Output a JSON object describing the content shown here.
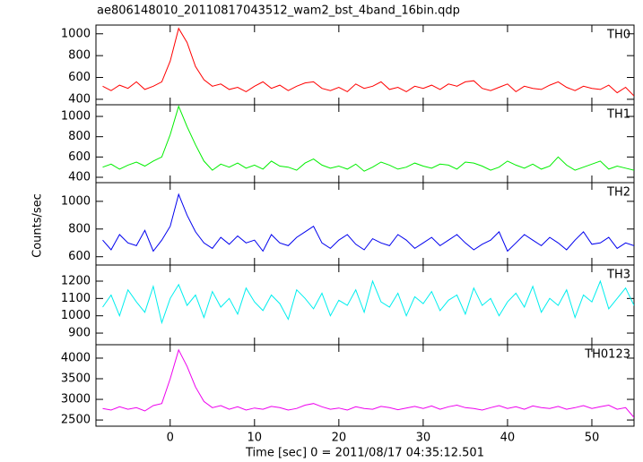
{
  "title": "ae806148010_20110817043512_wam2_bst_4band_16bin.qdp",
  "xlabel": "Time [sec] 0 = 2011/08/17 04:35:12.501",
  "ylabel": "Counts/sec",
  "chart_data": [
    {
      "type": "line",
      "name": "TH0",
      "color": "#ff0000",
      "x": [
        -8,
        -7,
        -6,
        -5,
        -4,
        -3,
        -2,
        -1,
        0,
        1,
        2,
        3,
        4,
        5,
        6,
        7,
        8,
        9,
        10,
        11,
        12,
        13,
        14,
        15,
        16,
        17,
        18,
        19,
        20,
        21,
        22,
        23,
        24,
        25,
        26,
        27,
        28,
        29,
        30,
        31,
        32,
        33,
        34,
        35,
        36,
        37,
        38,
        39,
        40,
        41,
        42,
        43,
        44,
        45,
        46,
        47,
        48,
        49,
        50,
        51,
        52,
        53,
        54,
        55
      ],
      "values": [
        520,
        480,
        530,
        500,
        560,
        490,
        520,
        560,
        750,
        1050,
        920,
        700,
        580,
        520,
        540,
        490,
        510,
        470,
        520,
        560,
        500,
        530,
        480,
        520,
        550,
        560,
        500,
        480,
        510,
        470,
        540,
        500,
        520,
        560,
        490,
        510,
        470,
        520,
        500,
        530,
        490,
        540,
        520,
        560,
        570,
        500,
        480,
        510,
        540,
        470,
        520,
        500,
        490,
        530,
        560,
        510,
        480,
        520,
        500,
        490,
        530,
        460,
        510,
        430
      ],
      "xlim": [
        -8.8,
        55
      ],
      "xticks": [
        0,
        10,
        20,
        30,
        40,
        50
      ],
      "ylim": [
        350,
        1080
      ],
      "yticks": [
        400,
        600,
        800,
        1000
      ]
    },
    {
      "type": "line",
      "name": "TH1",
      "color": "#00ee00",
      "x": [
        -8,
        -7,
        -6,
        -5,
        -4,
        -3,
        -2,
        -1,
        0,
        1,
        2,
        3,
        4,
        5,
        6,
        7,
        8,
        9,
        10,
        11,
        12,
        13,
        14,
        15,
        16,
        17,
        18,
        19,
        20,
        21,
        22,
        23,
        24,
        25,
        26,
        27,
        28,
        29,
        30,
        31,
        32,
        33,
        34,
        35,
        36,
        37,
        38,
        39,
        40,
        41,
        42,
        43,
        44,
        45,
        46,
        47,
        48,
        49,
        50,
        51,
        52,
        53,
        54,
        55
      ],
      "values": [
        500,
        530,
        480,
        520,
        550,
        510,
        560,
        600,
        820,
        1100,
        900,
        720,
        560,
        470,
        530,
        500,
        540,
        490,
        520,
        480,
        560,
        510,
        500,
        470,
        540,
        580,
        520,
        490,
        510,
        480,
        530,
        460,
        500,
        550,
        520,
        480,
        500,
        540,
        510,
        490,
        530,
        520,
        480,
        550,
        540,
        510,
        470,
        500,
        560,
        520,
        490,
        530,
        480,
        510,
        600,
        520,
        470,
        500,
        530,
        560,
        480,
        510,
        490,
        470
      ],
      "xlim": [
        -8.8,
        55
      ],
      "xticks": [
        0,
        10,
        20,
        30,
        40,
        50
      ],
      "ylim": [
        347,
        1115
      ],
      "yticks": [
        400,
        600,
        800,
        1000
      ]
    },
    {
      "type": "line",
      "name": "TH2",
      "color": "#0000ee",
      "x": [
        -8,
        -7,
        -6,
        -5,
        -4,
        -3,
        -2,
        -1,
        0,
        1,
        2,
        3,
        4,
        5,
        6,
        7,
        8,
        9,
        10,
        11,
        12,
        13,
        14,
        15,
        16,
        17,
        18,
        19,
        20,
        21,
        22,
        23,
        24,
        25,
        26,
        27,
        28,
        29,
        30,
        31,
        32,
        33,
        34,
        35,
        36,
        37,
        38,
        39,
        40,
        41,
        42,
        43,
        44,
        45,
        46,
        47,
        48,
        49,
        50,
        51,
        52,
        53,
        54,
        55
      ],
      "values": [
        720,
        650,
        760,
        700,
        680,
        790,
        640,
        720,
        820,
        1050,
        900,
        780,
        700,
        660,
        740,
        690,
        750,
        700,
        720,
        640,
        760,
        700,
        680,
        740,
        780,
        820,
        700,
        660,
        720,
        760,
        690,
        650,
        730,
        700,
        680,
        760,
        720,
        660,
        700,
        740,
        680,
        720,
        760,
        700,
        650,
        690,
        720,
        780,
        640,
        700,
        760,
        720,
        680,
        740,
        700,
        650,
        720,
        780,
        690,
        700,
        740,
        660,
        700,
        680
      ],
      "xlim": [
        -8.8,
        55
      ],
      "xticks": [
        0,
        10,
        20,
        30,
        40,
        50
      ],
      "ylim": [
        540,
        1135
      ],
      "yticks": [
        600,
        800,
        1000
      ]
    },
    {
      "type": "line",
      "name": "TH3",
      "color": "#00eeee",
      "x": [
        -8,
        -7,
        -6,
        -5,
        -4,
        -3,
        -2,
        -1,
        0,
        1,
        2,
        3,
        4,
        5,
        6,
        7,
        8,
        9,
        10,
        11,
        12,
        13,
        14,
        15,
        16,
        17,
        18,
        19,
        20,
        21,
        22,
        23,
        24,
        25,
        26,
        27,
        28,
        29,
        30,
        31,
        32,
        33,
        34,
        35,
        36,
        37,
        38,
        39,
        40,
        41,
        42,
        43,
        44,
        45,
        46,
        47,
        48,
        49,
        50,
        51,
        52,
        53,
        54,
        55
      ],
      "values": [
        1050,
        1120,
        1000,
        1150,
        1080,
        1020,
        1170,
        960,
        1100,
        1180,
        1060,
        1120,
        990,
        1140,
        1050,
        1100,
        1010,
        1160,
        1080,
        1030,
        1120,
        1070,
        980,
        1150,
        1100,
        1040,
        1130,
        1000,
        1090,
        1060,
        1150,
        1020,
        1200,
        1080,
        1050,
        1130,
        1000,
        1110,
        1070,
        1140,
        1030,
        1090,
        1120,
        1010,
        1160,
        1060,
        1100,
        1000,
        1080,
        1130,
        1050,
        1170,
        1020,
        1100,
        1060,
        1150,
        990,
        1120,
        1080,
        1200,
        1040,
        1100,
        1160,
        1060
      ],
      "xlim": [
        -8.8,
        55
      ],
      "xticks": [
        0,
        10,
        20,
        30,
        40,
        50
      ],
      "ylim": [
        833,
        1293
      ],
      "yticks": [
        900,
        1000,
        1100,
        1200
      ]
    },
    {
      "type": "line",
      "name": "TH0123",
      "color": "#ee00ee",
      "x": [
        -8,
        -7,
        -6,
        -5,
        -4,
        -3,
        -2,
        -1,
        0,
        1,
        2,
        3,
        4,
        5,
        6,
        7,
        8,
        9,
        10,
        11,
        12,
        13,
        14,
        15,
        16,
        17,
        18,
        19,
        20,
        21,
        22,
        23,
        24,
        25,
        26,
        27,
        28,
        29,
        30,
        31,
        32,
        33,
        34,
        35,
        36,
        37,
        38,
        39,
        40,
        41,
        42,
        43,
        44,
        45,
        46,
        47,
        48,
        49,
        50,
        51,
        52,
        53,
        54,
        55
      ],
      "values": [
        2780,
        2740,
        2820,
        2760,
        2800,
        2720,
        2850,
        2900,
        3500,
        4200,
        3800,
        3300,
        2950,
        2800,
        2850,
        2760,
        2820,
        2740,
        2790,
        2760,
        2830,
        2800,
        2740,
        2780,
        2860,
        2900,
        2820,
        2760,
        2790,
        2740,
        2820,
        2780,
        2760,
        2830,
        2800,
        2750,
        2790,
        2830,
        2780,
        2840,
        2760,
        2820,
        2860,
        2800,
        2780,
        2740,
        2800,
        2850,
        2780,
        2820,
        2760,
        2840,
        2800,
        2780,
        2830,
        2760,
        2800,
        2850,
        2780,
        2820,
        2860,
        2760,
        2800,
        2560
      ],
      "xlim": [
        -8.8,
        55
      ],
      "xticks": [
        0,
        10,
        20,
        30,
        40,
        50
      ],
      "ylim": [
        2350,
        4325
      ],
      "yticks": [
        2500,
        3000,
        3500,
        4000
      ]
    }
  ]
}
